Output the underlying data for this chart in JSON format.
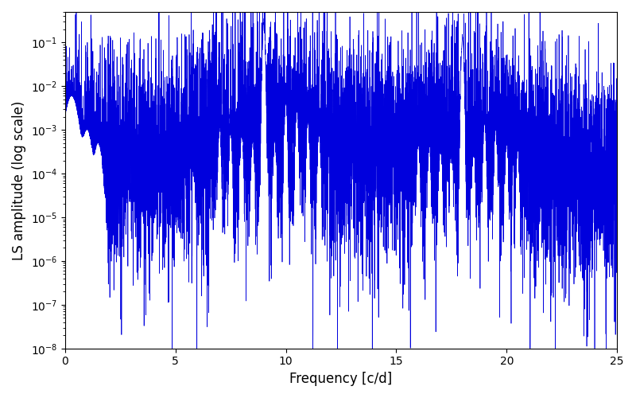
{
  "title": "",
  "xlabel": "Frequency [c/d]",
  "ylabel": "LS amplitude (log scale)",
  "line_color": "#0000dd",
  "line_width": 0.5,
  "freq_min": 0.0,
  "freq_max": 25.0,
  "ylim_min": 1e-08,
  "ylim_max": 0.5,
  "peak1_freq": 9.0,
  "peak1_amp": 0.28,
  "peak2_freq": 18.0,
  "peak2_amp": 0.12,
  "seed": 137,
  "n_points": 8000,
  "background_color": "#ffffff",
  "figsize": [
    8.0,
    5.0
  ],
  "dpi": 100
}
